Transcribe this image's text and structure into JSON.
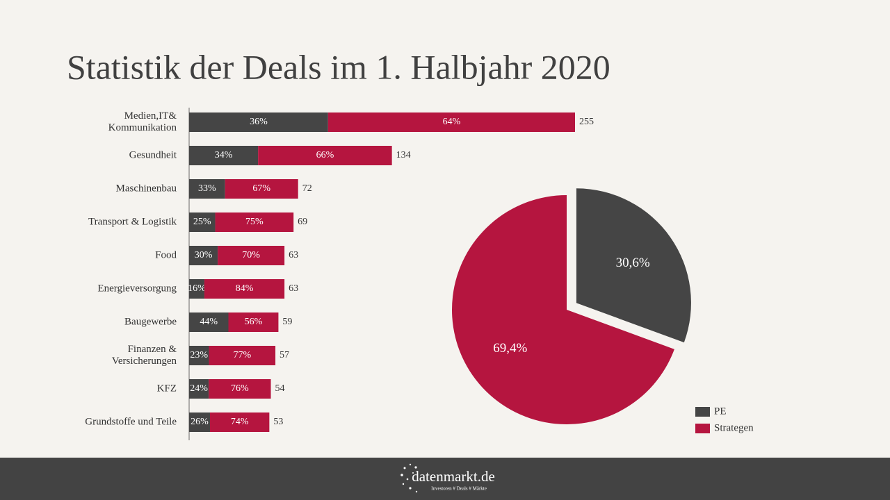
{
  "title": "Statistik der Deals im 1. Halbjahr 2020",
  "chart_data": [
    {
      "type": "bar",
      "categories": [
        "Medien,IT&\nKommunikation",
        "Gesundheit",
        "Maschinenbau",
        "Transport & Logistik",
        "Food",
        "Energieversorgung",
        "Baugewerbe",
        "Finanzen &\nVersicherungen",
        "KFZ",
        "Grundstoffe und Teile"
      ],
      "values": [
        255,
        134,
        72,
        69,
        63,
        63,
        59,
        57,
        54,
        53
      ],
      "series": [
        {
          "color": "#454545",
          "values": [
            36,
            34,
            33,
            25,
            30,
            16,
            44,
            23,
            24,
            26
          ],
          "value_labels": [
            "36%",
            "34%",
            "33%",
            "25%",
            "30%",
            "16%",
            "44%",
            "23%",
            "24%",
            "26%"
          ]
        },
        {
          "color": "#b5153f",
          "values": [
            64,
            66,
            67,
            75,
            70,
            84,
            56,
            77,
            76,
            74
          ],
          "value_labels": [
            "64%",
            "66%",
            "67%",
            "75%",
            "70%",
            "84%",
            "56%",
            "77%",
            "76%",
            "74%"
          ]
        }
      ]
    },
    {
      "type": "pie",
      "categories": [
        "PE",
        "Strategen"
      ],
      "values": [
        30.6,
        69.4
      ],
      "value_labels": [
        "30,6%",
        "69,4%"
      ],
      "colors": [
        "#454545",
        "#b5153f"
      ],
      "legend": "bottom-right"
    }
  ],
  "footer": {
    "brand": "datenmarkt.de",
    "tagline": "Investoren # Deals # Märkte"
  }
}
